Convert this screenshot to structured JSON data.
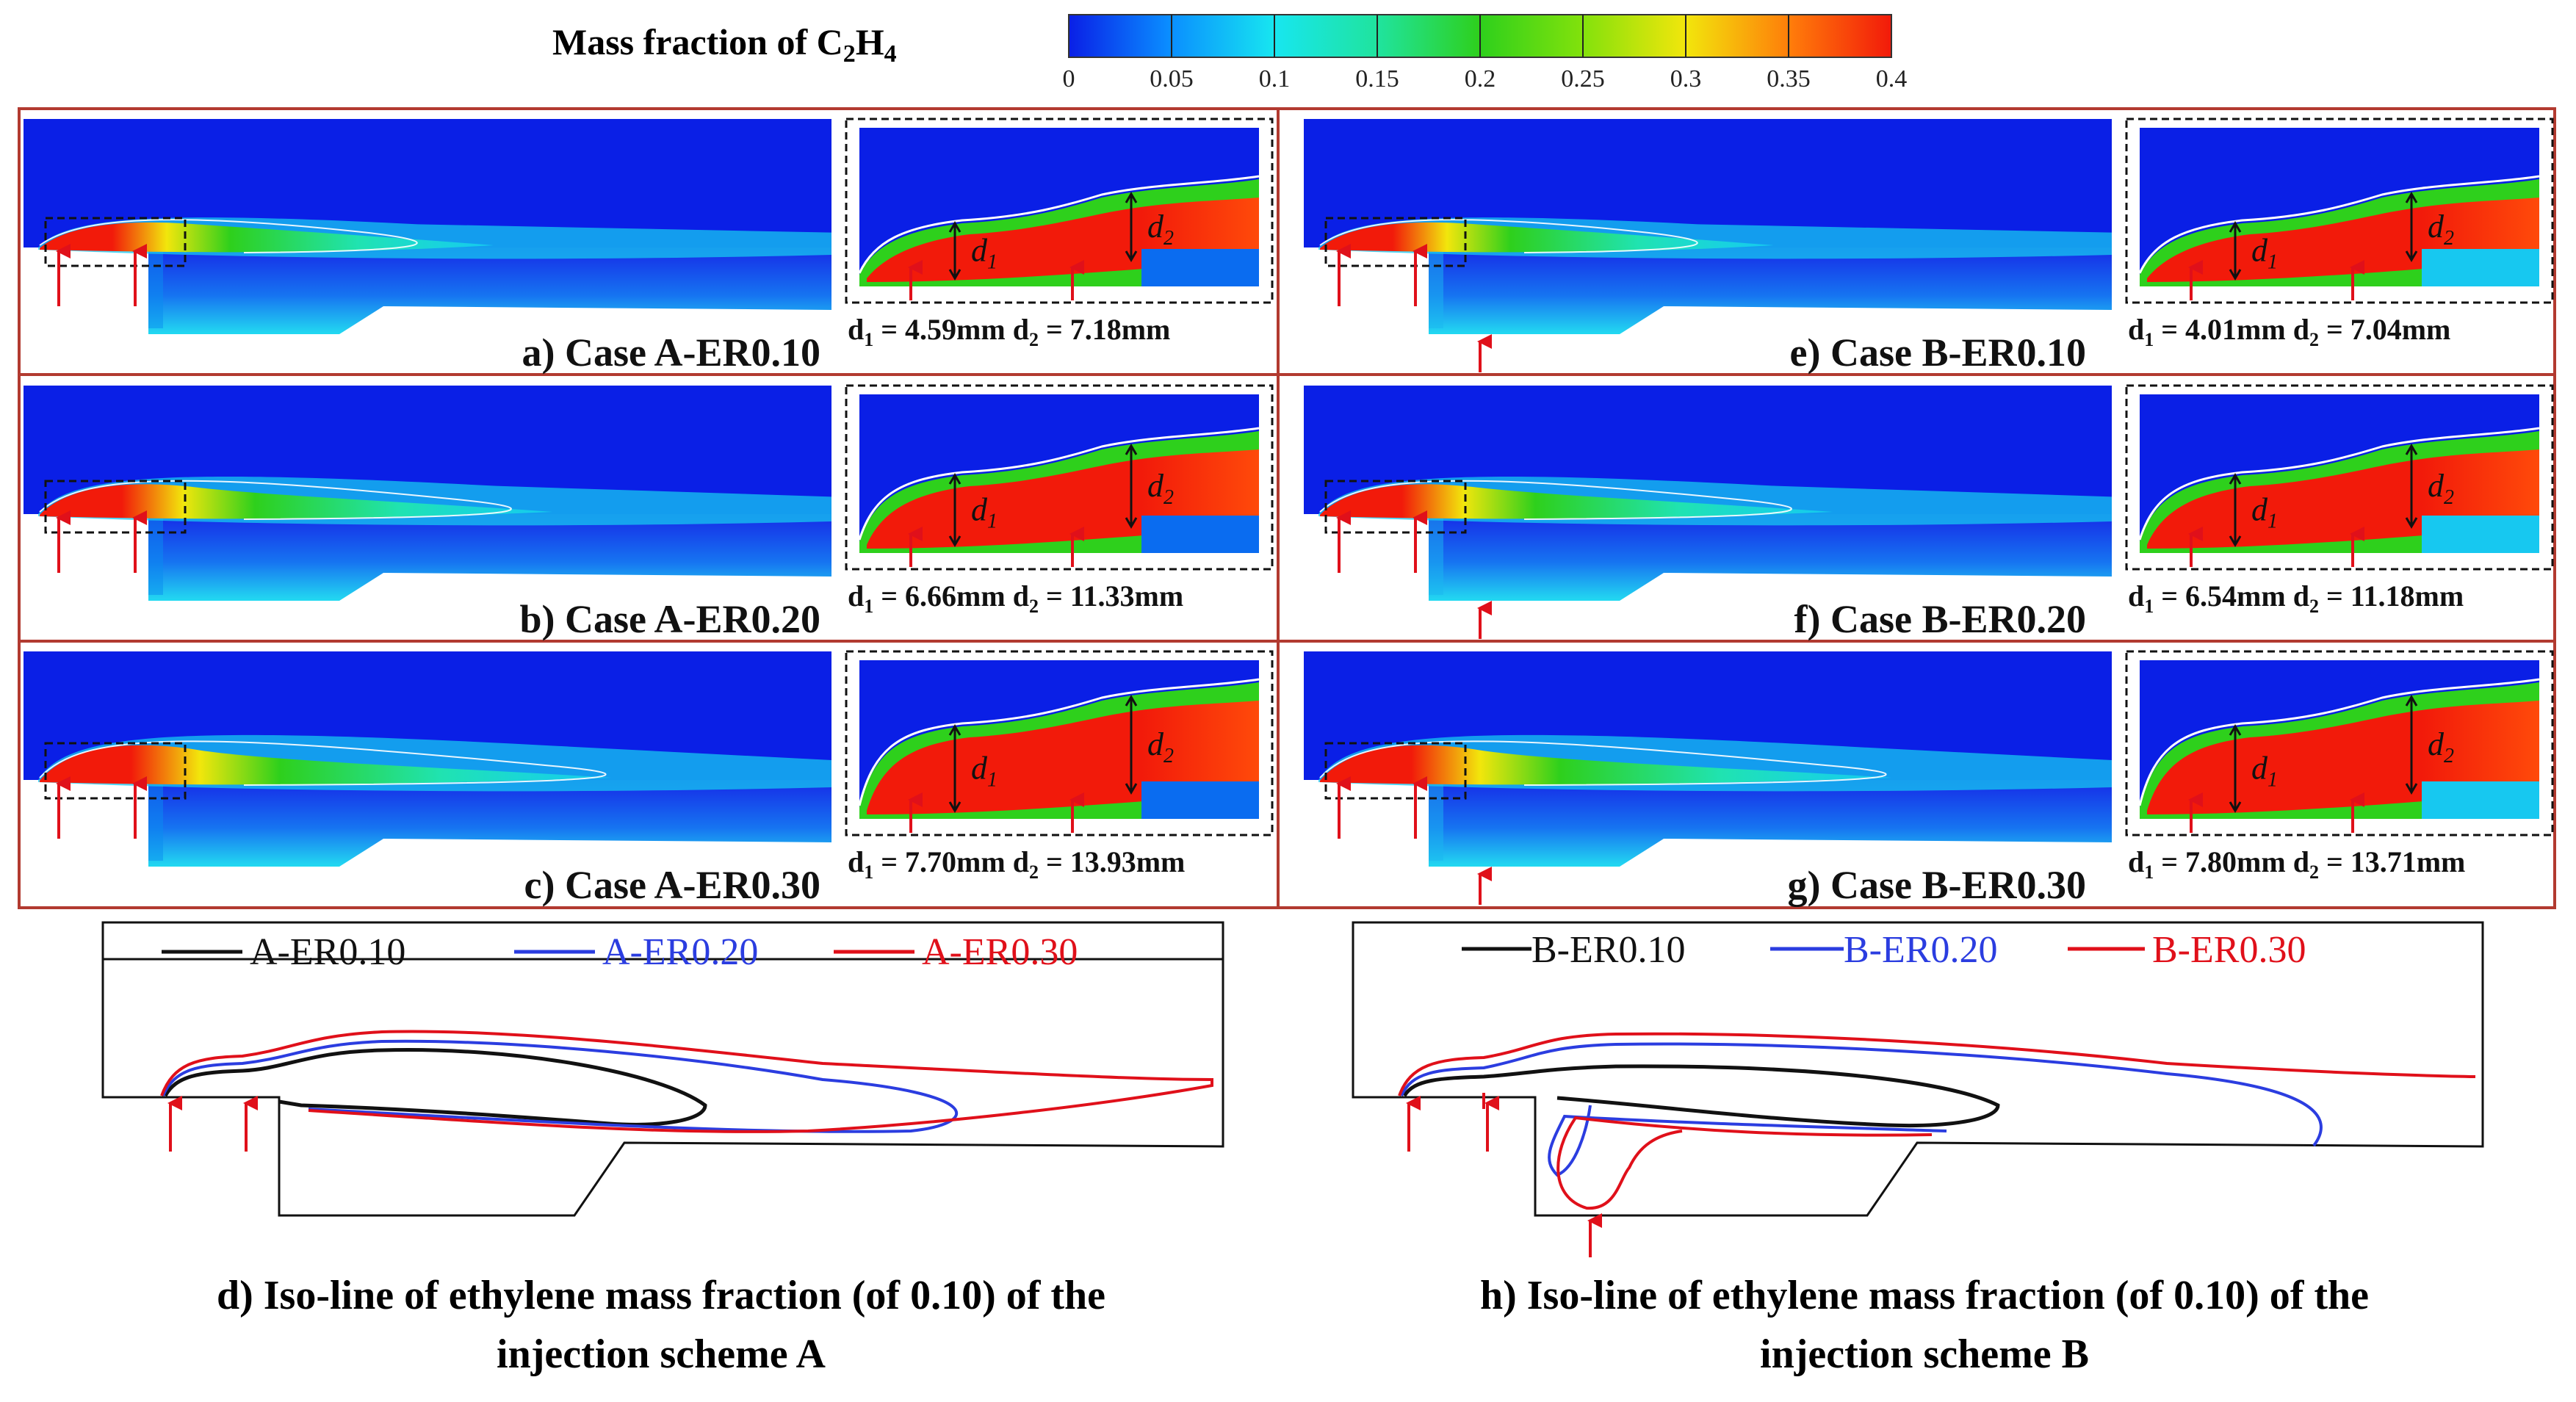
{
  "colorbar": {
    "title_main": "Mass fraction of C",
    "title_sub1": "2",
    "title_mid": "H",
    "title_sub2": "4",
    "ticks": [
      "0",
      "0.05",
      "0.1",
      "0.15",
      "0.2",
      "0.25",
      "0.3",
      "0.35",
      "0.4"
    ],
    "colors": [
      "#0a1fe6",
      "#0aa0ff",
      "#17f0e2",
      "#1fe38c",
      "#2ecf1a",
      "#98e60c",
      "#f0e60c",
      "#ff7a0a",
      "#f21a0a"
    ]
  },
  "panels": [
    {
      "id": "a",
      "caption": "a) Case A-ER0.10",
      "d1": "4.59mm",
      "d2": "7.18mm",
      "scheme": "A",
      "er": 0.1
    },
    {
      "id": "b",
      "caption": "b) Case A-ER0.20",
      "d1": "6.66mm",
      "d2": "11.33mm",
      "scheme": "A",
      "er": 0.2
    },
    {
      "id": "c",
      "caption": "c) Case A-ER0.30",
      "d1": "7.70mm",
      "d2": "13.93mm",
      "scheme": "A",
      "er": 0.3
    },
    {
      "id": "e",
      "caption": "e) Case B-ER0.10",
      "d1": "4.01mm",
      "d2": "7.04mm",
      "scheme": "B",
      "er": 0.1
    },
    {
      "id": "f",
      "caption": "f) Case B-ER0.20",
      "d1": "6.54mm",
      "d2": "11.18mm",
      "scheme": "B",
      "er": 0.2
    },
    {
      "id": "g",
      "caption": "g) Case B-ER0.30",
      "d1": "7.80mm",
      "d2": "13.71mm",
      "scheme": "B",
      "er": 0.3
    }
  ],
  "dim_labels": {
    "d1_symbol": "d",
    "d1_sub": "1",
    "d2_symbol": "d",
    "d2_sub": "2",
    "equals": " = "
  },
  "isoline_panels": [
    {
      "id": "d",
      "legend": [
        "A-ER0.10",
        "A-ER0.20",
        "A-ER0.30"
      ],
      "legend_colors": [
        "#111111",
        "#2b3de0",
        "#e0101a"
      ],
      "caption_line1": "d) Iso-line of ethylene mass fraction (of 0.10) of the",
      "caption_line2": "injection scheme A"
    },
    {
      "id": "h",
      "legend": [
        "B-ER0.10",
        "B-ER0.20",
        "B-ER0.30"
      ],
      "legend_colors": [
        "#111111",
        "#2b3de0",
        "#e0101a"
      ],
      "caption_line1": "h) Iso-line of ethylene mass fraction (of 0.10) of the",
      "caption_line2": "injection scheme B"
    }
  ]
}
